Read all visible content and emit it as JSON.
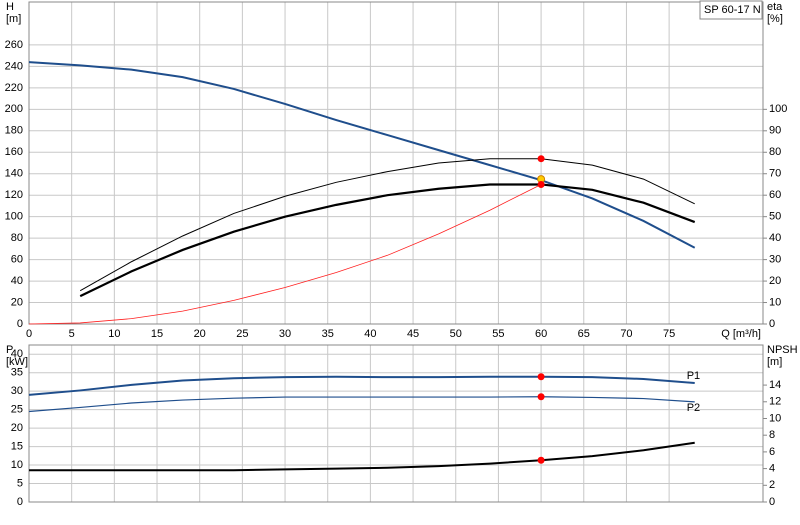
{
  "chart_data": [
    {
      "type": "line",
      "title": "SP 60-17 N",
      "xlabel": "Q [m³/h]",
      "ylabel": "H",
      "yunit": "[m]",
      "y2label": "eta",
      "y2unit": "[%]",
      "xlim": [
        0,
        86
      ],
      "xticks": [
        0,
        5,
        10,
        15,
        20,
        25,
        30,
        35,
        40,
        45,
        50,
        55,
        60,
        65,
        70,
        75
      ],
      "ylim": [
        0,
        300
      ],
      "yticks": [
        0,
        20,
        40,
        60,
        80,
        100,
        120,
        140,
        160,
        180,
        200,
        220,
        240,
        260
      ],
      "y2lim": [
        0,
        150
      ],
      "y2ticks": [
        0,
        10,
        20,
        30,
        40,
        50,
        60,
        70,
        80,
        90,
        100
      ],
      "grid": true,
      "series": [
        {
          "color": "#1f4e8c",
          "line_width": 2,
          "x": [
            0,
            6,
            12,
            18,
            24,
            30,
            36,
            42,
            48,
            54,
            60,
            66,
            72,
            78
          ],
          "values": [
            244,
            241,
            237,
            230,
            219,
            205,
            190,
            176,
            162,
            148,
            134,
            117,
            96,
            71
          ]
        },
        {
          "color": "#ff2020",
          "line_width": 0.8,
          "x": [
            0,
            6,
            12,
            18,
            24,
            30,
            36,
            42,
            48,
            54,
            60
          ],
          "values": [
            0,
            1,
            5,
            12,
            22,
            34,
            48,
            64,
            84,
            106,
            130
          ]
        },
        {
          "color": "#000000",
          "line_width": 1,
          "axis": "y2",
          "x": [
            6,
            12,
            18,
            24,
            30,
            36,
            42,
            48,
            54,
            60,
            66,
            72,
            78
          ],
          "values": [
            15.5,
            29,
            41,
            51.5,
            59.5,
            66,
            71,
            75,
            77,
            77,
            74,
            67.5,
            56
          ]
        },
        {
          "color": "#000000",
          "line_width": 2.2,
          "axis": "y2",
          "x": [
            6,
            12,
            18,
            24,
            30,
            36,
            42,
            48,
            54,
            60,
            66,
            72,
            78
          ],
          "values": [
            13,
            24.5,
            34.5,
            43,
            50,
            55.5,
            60,
            63,
            65,
            65,
            62.5,
            56.5,
            47.5
          ]
        }
      ],
      "points": [
        {
          "x": 60,
          "y": 77,
          "axis": "y2",
          "color": "#ff0000"
        },
        {
          "x": 60,
          "y": 135,
          "color": "#ffcc00"
        },
        {
          "x": 60,
          "y": 65,
          "axis": "y2",
          "color": "#ff0000"
        }
      ]
    },
    {
      "type": "line",
      "ylabel": "P",
      "yunit": "[kW]",
      "y2label": "NPSH",
      "y2unit": "[m]",
      "xlim": [
        0,
        86
      ],
      "xticks": [
        0,
        5,
        10,
        15,
        20,
        25,
        30,
        35,
        40,
        45,
        50,
        55,
        60,
        65,
        70,
        75
      ],
      "ylim": [
        0,
        42.5
      ],
      "yticks": [
        0,
        5,
        10,
        15,
        20,
        25,
        30,
        35,
        40
      ],
      "y2lim": [
        0,
        18.8
      ],
      "y2ticks": [
        0,
        2,
        4,
        6,
        8,
        10,
        12,
        14
      ],
      "grid": true,
      "series": [
        {
          "name": "P1",
          "color": "#1f4e8c",
          "line_width": 2,
          "x": [
            0,
            6,
            12,
            18,
            24,
            30,
            36,
            42,
            48,
            54,
            60,
            66,
            72,
            78
          ],
          "values": [
            29,
            30.2,
            31.7,
            32.9,
            33.5,
            33.8,
            33.9,
            33.8,
            33.8,
            33.9,
            33.9,
            33.8,
            33.3,
            32.2
          ]
        },
        {
          "name": "P2",
          "color": "#1f4e8c",
          "line_width": 1.2,
          "x": [
            0,
            6,
            12,
            18,
            24,
            30,
            36,
            42,
            48,
            54,
            60,
            66,
            72,
            78
          ],
          "values": [
            24.5,
            25.6,
            26.8,
            27.6,
            28.1,
            28.4,
            28.4,
            28.4,
            28.4,
            28.4,
            28.5,
            28.3,
            28,
            27.1
          ]
        },
        {
          "color": "#000000",
          "line_width": 2,
          "axis": "y2",
          "x": [
            0,
            6,
            12,
            18,
            24,
            30,
            36,
            42,
            48,
            54,
            60,
            66,
            72,
            78
          ],
          "values": [
            3.8,
            3.8,
            3.8,
            3.8,
            3.8,
            3.9,
            4,
            4.1,
            4.3,
            4.6,
            5,
            5.5,
            6.2,
            7.1
          ]
        }
      ],
      "points": [
        {
          "x": 60,
          "y": 33.9,
          "color": "#ff0000"
        },
        {
          "x": 60,
          "y": 28.5,
          "color": "#ff0000"
        },
        {
          "x": 60,
          "y": 5,
          "axis": "y2",
          "color": "#ff0000"
        }
      ]
    }
  ]
}
